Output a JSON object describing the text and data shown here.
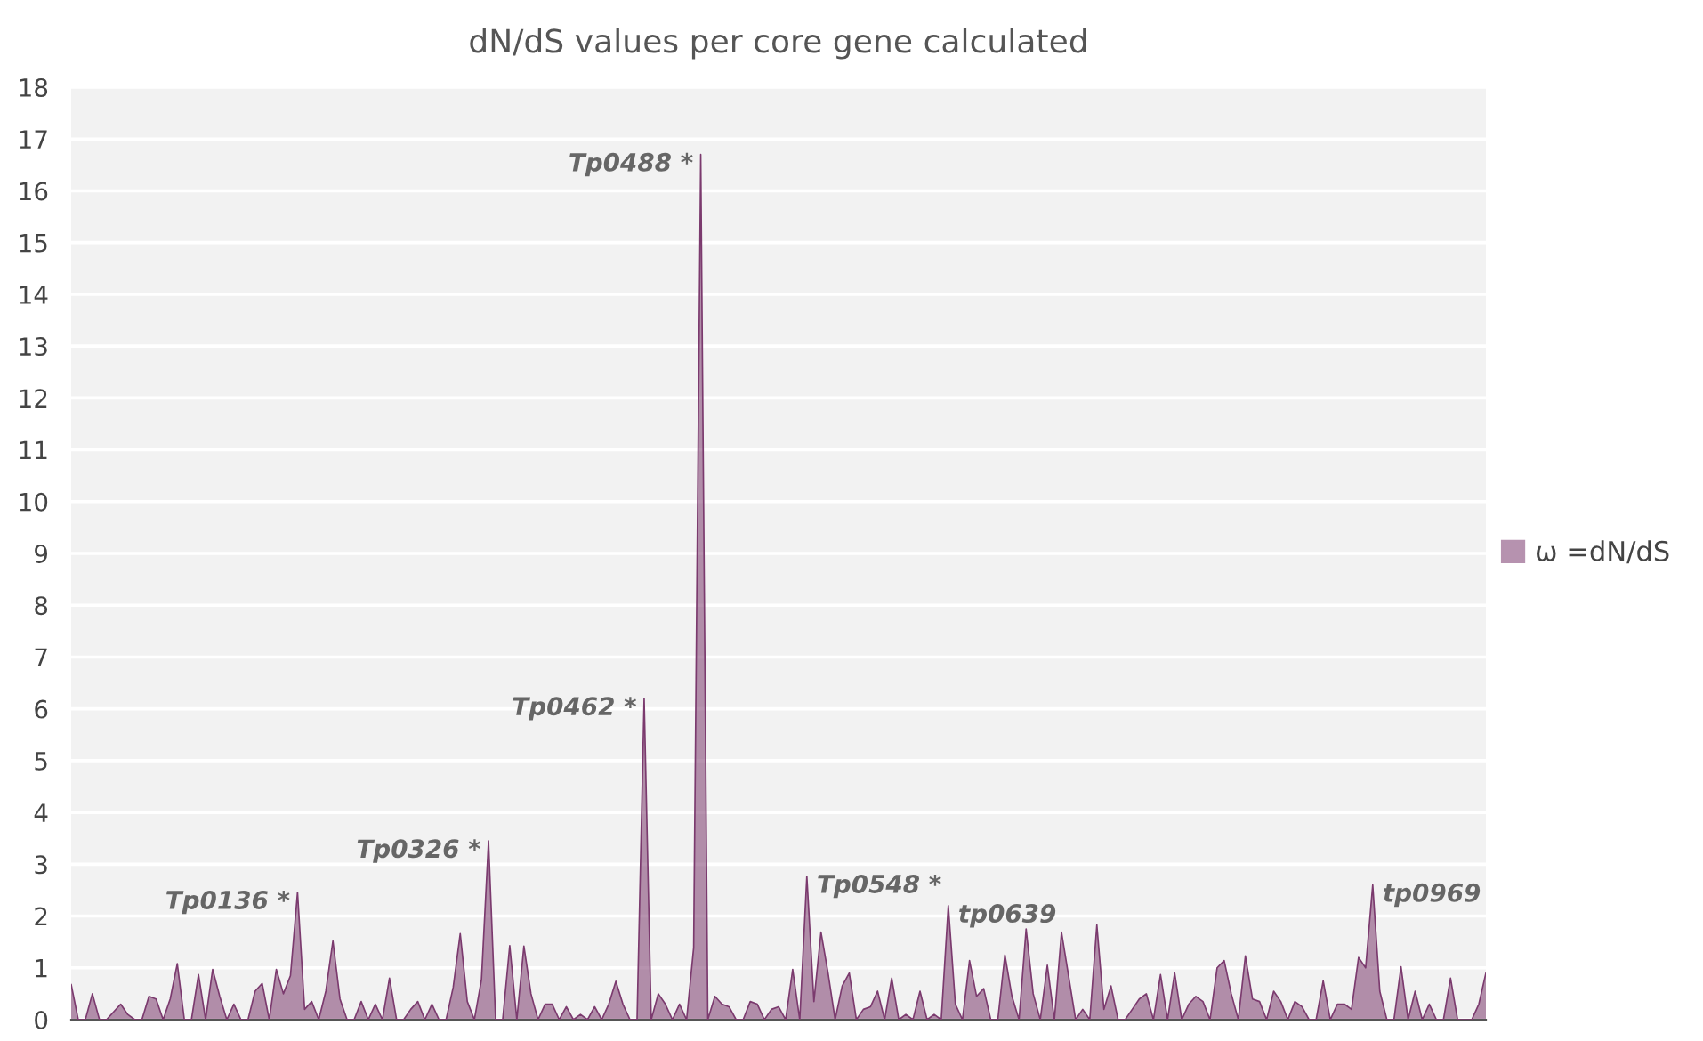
{
  "chart_data": {
    "type": "area",
    "title": "dN/dS values per core gene calculated",
    "categories": [
      null,
      null,
      null,
      null,
      null,
      null,
      null,
      null,
      null,
      null,
      null,
      null,
      null,
      null,
      null,
      null,
      null,
      null,
      null,
      null,
      null,
      null,
      null,
      null,
      null,
      null,
      null,
      null,
      null,
      null,
      null,
      null,
      null,
      null,
      null,
      null,
      null,
      null,
      null,
      null,
      null,
      null,
      null,
      null,
      null,
      null,
      null,
      null,
      null,
      null,
      null,
      null,
      null,
      null,
      null,
      null,
      null,
      null,
      null,
      null,
      null,
      null,
      null,
      null,
      null,
      null,
      null,
      null,
      null,
      null,
      null,
      null,
      null,
      null,
      null,
      null,
      null,
      null,
      null,
      null,
      null,
      null,
      null,
      null,
      null,
      null,
      null,
      null,
      null,
      null,
      null,
      null,
      null,
      null,
      null,
      null,
      null,
      null,
      null,
      null,
      null,
      null,
      null,
      null,
      null,
      null,
      null,
      null,
      null,
      null,
      null,
      null,
      null,
      null,
      null,
      null,
      null,
      null,
      null,
      null,
      null,
      null,
      null,
      null,
      null,
      null,
      null,
      null,
      null,
      null,
      null,
      null,
      null,
      null,
      null,
      null,
      null,
      null,
      null,
      null,
      null,
      null,
      null,
      null,
      null,
      null,
      null,
      null,
      null,
      null,
      null,
      null,
      null,
      null,
      null,
      null,
      null,
      null,
      null,
      null,
      null,
      null,
      null,
      null,
      null,
      null,
      null,
      null,
      null,
      null,
      null,
      null,
      null,
      null,
      null,
      null,
      null,
      null,
      null,
      null,
      null,
      null,
      null,
      null,
      null,
      null,
      null,
      null,
      null,
      null,
      null,
      null,
      null,
      null,
      null,
      null,
      null,
      null,
      null,
      null,
      null
    ],
    "series": [
      {
        "name": "ω =dN/dS",
        "color": "#7b3a6e",
        "values": [
          0.68,
          0,
          0,
          0.5,
          0,
          0,
          0.15,
          0.3,
          0.1,
          0,
          0,
          0.45,
          0.4,
          0,
          0.4,
          1.08,
          0,
          0,
          0.87,
          0,
          0.97,
          0.45,
          0,
          0.3,
          0,
          0,
          0.55,
          0.7,
          0,
          0.97,
          0.5,
          0.85,
          2.46,
          0.2,
          0.35,
          0,
          0.55,
          1.52,
          0.4,
          0,
          0,
          0.35,
          0,
          0.3,
          0,
          0.8,
          0,
          0,
          0.2,
          0.35,
          0,
          0.3,
          0,
          0,
          0.62,
          1.66,
          0.35,
          0,
          0.77,
          3.45,
          0,
          0,
          1.43,
          0,
          1.42,
          0.5,
          0,
          0.3,
          0.3,
          0,
          0.25,
          0,
          0.1,
          0,
          0.25,
          0,
          0.3,
          0.74,
          0.3,
          0,
          0,
          6.2,
          0,
          0.5,
          0.3,
          0,
          0.3,
          0,
          1.39,
          16.7,
          0,
          0.45,
          0.3,
          0.25,
          0,
          0,
          0.35,
          0.3,
          0,
          0.2,
          0.25,
          0,
          0.97,
          0,
          2.77,
          0.35,
          1.69,
          0.9,
          0,
          0.65,
          0.9,
          0,
          0.2,
          0.25,
          0.55,
          0,
          0.8,
          0,
          0.1,
          0,
          0.55,
          0,
          0.1,
          0,
          2.2,
          0.3,
          0,
          1.14,
          0.45,
          0.6,
          0,
          0,
          1.25,
          0.45,
          0,
          1.75,
          0.5,
          0,
          1.05,
          0,
          1.69,
          0.85,
          0,
          0.2,
          0,
          1.83,
          0.2,
          0.65,
          0,
          0,
          0.2,
          0.4,
          0.5,
          0,
          0.87,
          0,
          0.9,
          0,
          0.3,
          0.45,
          0.35,
          0,
          1.0,
          1.14,
          0.5,
          0,
          1.23,
          0.4,
          0.35,
          0,
          0.55,
          0.35,
          0,
          0.35,
          0.25,
          0,
          0,
          0.75,
          0,
          0.3,
          0.3,
          0.2,
          1.2,
          1.0,
          2.6,
          0.55,
          0,
          0,
          1.02,
          0,
          0.55,
          0,
          0.3,
          0,
          0,
          0.8,
          0,
          0,
          0,
          0.3,
          0.9
        ]
      }
    ],
    "annotations": [
      "Tp0136 *",
      "Tp0326 *",
      "Tp0462 *",
      "Tp0488 *",
      "Tp0548 *",
      "tp0639",
      "tp0969"
    ],
    "ylim": [
      0,
      18
    ],
    "yticks": [
      0,
      1,
      2,
      3,
      4,
      5,
      6,
      7,
      8,
      9,
      10,
      11,
      12,
      13,
      14,
      15,
      16,
      17,
      18
    ],
    "grid": "y",
    "legend": "right"
  }
}
